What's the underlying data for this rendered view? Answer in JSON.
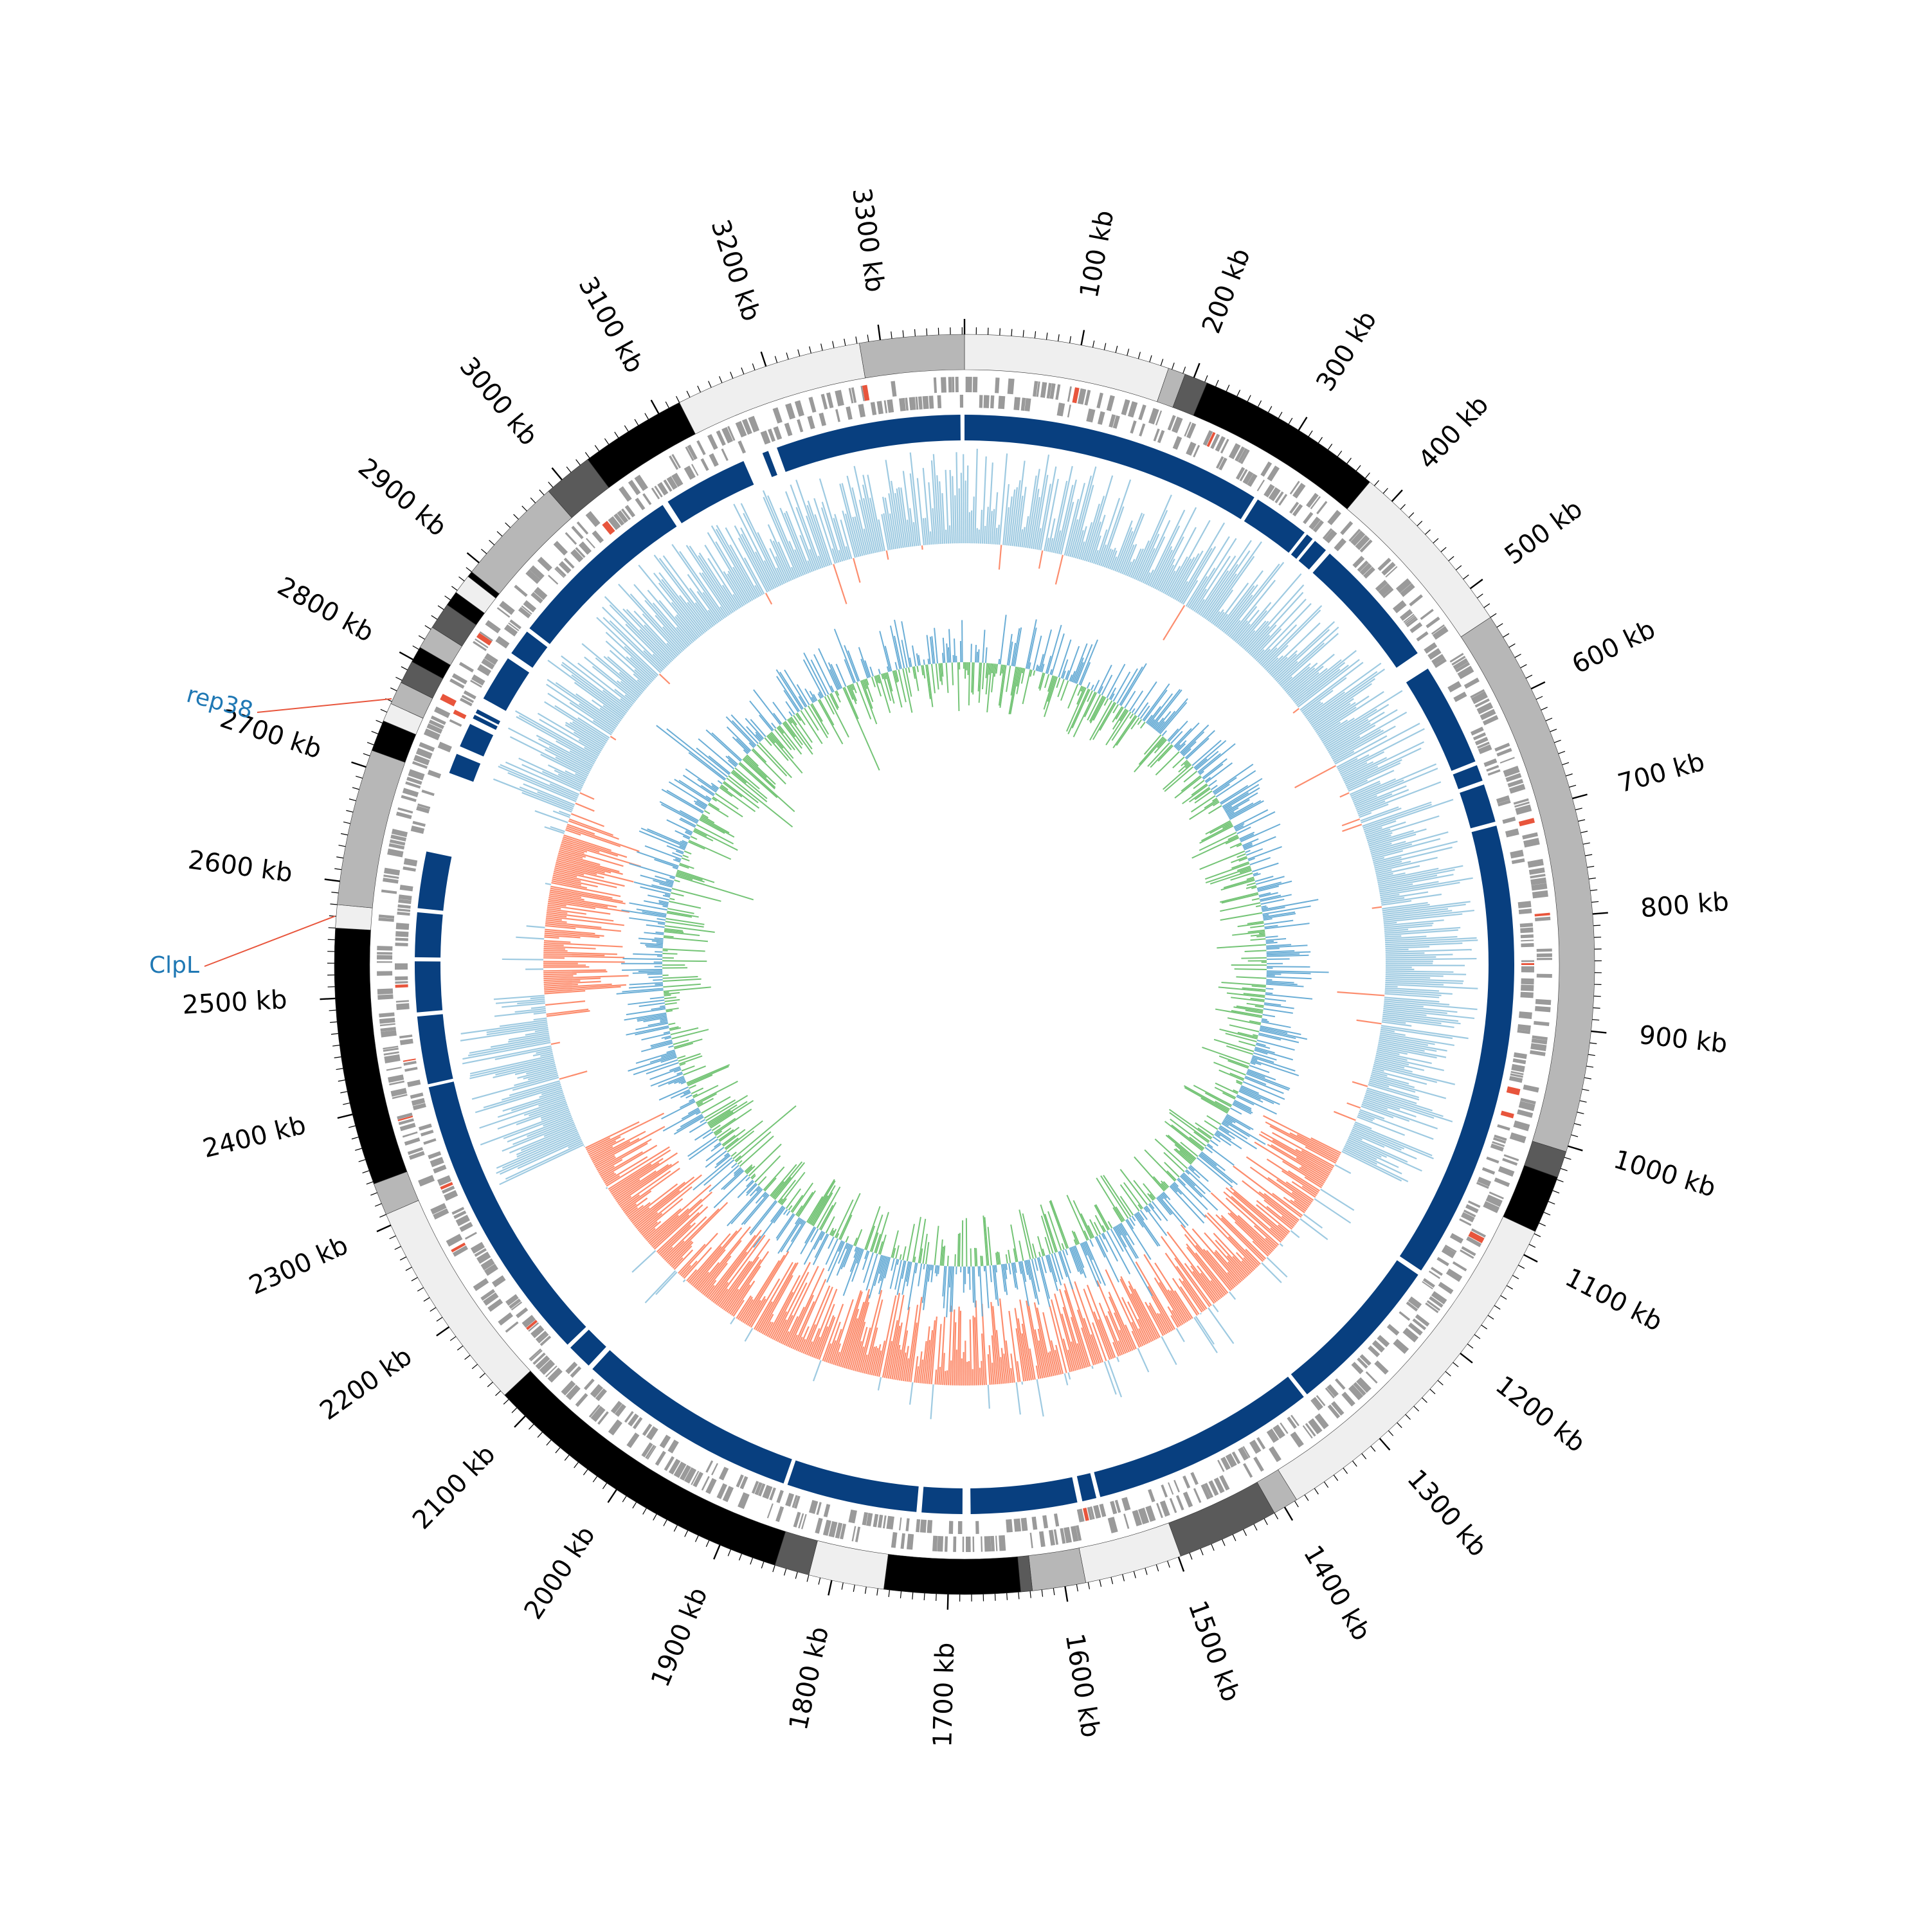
{
  "genome": {
    "length_kb": 3372,
    "tick_unit": "kb",
    "tick_labels": [
      "100 kb",
      "200 kb",
      "300 kb",
      "400 kb",
      "500 kb",
      "600 kb",
      "700 kb",
      "800 kb",
      "900 kb",
      "1000 kb",
      "1100 kb",
      "1200 kb",
      "1300 kb",
      "1400 kb",
      "1500 kb",
      "1600 kb",
      "1700 kb",
      "1800 kb",
      "1900 kb",
      "2000 kb",
      "2100 kb",
      "2200 kb",
      "2300 kb",
      "2400 kb",
      "2500 kb",
      "2600 kb",
      "2700 kb",
      "2800 kb",
      "2900 kb",
      "3000 kb",
      "3100 kb",
      "3200 kb",
      "3300 kb"
    ]
  },
  "annotations": [
    {
      "label": "rep38",
      "position_kb": 2762,
      "color": "#1f78b4",
      "line_color": "#e8553c"
    },
    {
      "label": "ClpL",
      "position_kb": 2570,
      "color": "#1f78b4",
      "line_color": "#e8553c"
    }
  ],
  "colors": {
    "background": "#ffffff",
    "contig_black": "#000000",
    "contig_dark": "#5a5a5a",
    "contig_mid": "#b7b7b7",
    "contig_light": "#efefef",
    "gene_gray": "#9a9a9a",
    "gene_highlight": "#e8553c",
    "blocks": "#083f7f",
    "gc_content": "#9ecae1",
    "gc_content_low": "#fc8d6e",
    "gc_skew_pos": "#74c476",
    "gc_skew_neg": "#6baed6"
  },
  "contigs": [
    {
      "start": 0,
      "end": 177,
      "shade": "contig_light"
    },
    {
      "start": 177,
      "end": 192,
      "shade": "contig_mid"
    },
    {
      "start": 192,
      "end": 212,
      "shade": "contig_dark"
    },
    {
      "start": 212,
      "end": 375,
      "shade": "contig_black"
    },
    {
      "start": 375,
      "end": 530,
      "shade": "contig_light"
    },
    {
      "start": 530,
      "end": 1005,
      "shade": "contig_mid"
    },
    {
      "start": 1005,
      "end": 1028,
      "shade": "contig_dark"
    },
    {
      "start": 1028,
      "end": 1078,
      "shade": "contig_black"
    },
    {
      "start": 1078,
      "end": 1388,
      "shade": "contig_light"
    },
    {
      "start": 1388,
      "end": 1410,
      "shade": "contig_mid"
    },
    {
      "start": 1410,
      "end": 1498,
      "shade": "contig_dark"
    },
    {
      "start": 1498,
      "end": 1582,
      "shade": "contig_light"
    },
    {
      "start": 1582,
      "end": 1628,
      "shade": "contig_mid"
    },
    {
      "start": 1628,
      "end": 1638,
      "shade": "contig_dark"
    },
    {
      "start": 1638,
      "end": 1755,
      "shade": "contig_black"
    },
    {
      "start": 1755,
      "end": 1820,
      "shade": "contig_light"
    },
    {
      "start": 1820,
      "end": 1850,
      "shade": "contig_dark"
    },
    {
      "start": 1850,
      "end": 2125,
      "shade": "contig_black"
    },
    {
      "start": 2125,
      "end": 2310,
      "shade": "contig_light"
    },
    {
      "start": 2310,
      "end": 2338,
      "shade": "contig_mid"
    },
    {
      "start": 2338,
      "end": 2560,
      "shade": "contig_black"
    },
    {
      "start": 2560,
      "end": 2580,
      "shade": "contig_light"
    },
    {
      "start": 2580,
      "end": 2715,
      "shade": "contig_mid"
    },
    {
      "start": 2715,
      "end": 2742,
      "shade": "contig_black"
    },
    {
      "start": 2742,
      "end": 2758,
      "shade": "contig_light"
    },
    {
      "start": 2758,
      "end": 2778,
      "shade": "contig_mid"
    },
    {
      "start": 2778,
      "end": 2798,
      "shade": "contig_dark"
    },
    {
      "start": 2798,
      "end": 2812,
      "shade": "contig_black"
    },
    {
      "start": 2812,
      "end": 2832,
      "shade": "contig_mid"
    },
    {
      "start": 2832,
      "end": 2855,
      "shade": "contig_dark"
    },
    {
      "start": 2855,
      "end": 2868,
      "shade": "contig_black"
    },
    {
      "start": 2868,
      "end": 2885,
      "shade": "contig_light"
    },
    {
      "start": 2885,
      "end": 2890,
      "shade": "contig_black"
    },
    {
      "start": 2890,
      "end": 2985,
      "shade": "contig_mid"
    },
    {
      "start": 2985,
      "end": 3028,
      "shade": "contig_dark"
    },
    {
      "start": 3028,
      "end": 3120,
      "shade": "contig_black"
    },
    {
      "start": 3120,
      "end": 3282,
      "shade": "contig_light"
    },
    {
      "start": 3282,
      "end": 3372,
      "shade": "contig_mid"
    }
  ],
  "blocks": [
    {
      "start": 0,
      "end": 298
    },
    {
      "start": 302,
      "end": 358
    },
    {
      "start": 361,
      "end": 368
    },
    {
      "start": 371,
      "end": 385
    },
    {
      "start": 390,
      "end": 520
    },
    {
      "start": 538,
      "end": 640
    },
    {
      "start": 644,
      "end": 660
    },
    {
      "start": 664,
      "end": 702
    },
    {
      "start": 706,
      "end": 1160
    },
    {
      "start": 1165,
      "end": 1325
    },
    {
      "start": 1329,
      "end": 1552
    },
    {
      "start": 1556,
      "end": 1570
    },
    {
      "start": 1575,
      "end": 1680
    },
    {
      "start": 1688,
      "end": 1728
    },
    {
      "start": 1733,
      "end": 1862
    },
    {
      "start": 1866,
      "end": 2085
    },
    {
      "start": 2090,
      "end": 2115
    },
    {
      "start": 2119,
      "end": 2408
    },
    {
      "start": 2411,
      "end": 2478
    },
    {
      "start": 2482,
      "end": 2532
    },
    {
      "start": 2536,
      "end": 2580
    },
    {
      "start": 2584,
      "end": 2640
    },
    {
      "start": 2720,
      "end": 2740
    },
    {
      "start": 2748,
      "end": 2772
    },
    {
      "start": 2778,
      "end": 2782
    },
    {
      "start": 2784,
      "end": 2788
    },
    {
      "start": 2800,
      "end": 2846
    },
    {
      "start": 2852,
      "end": 2878
    },
    {
      "start": 2882,
      "end": 3060
    },
    {
      "start": 3066,
      "end": 3150
    },
    {
      "start": 3170,
      "end": 3176
    },
    {
      "start": 3185,
      "end": 3368
    }
  ]
}
